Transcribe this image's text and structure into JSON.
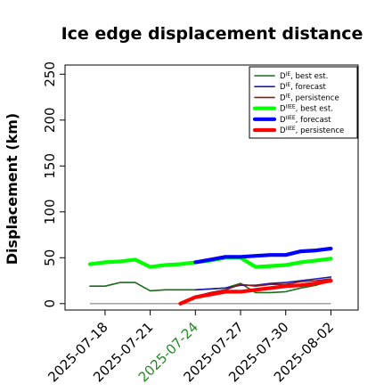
{
  "chart_data": {
    "type": "line",
    "title": "Ice edge displacement distance",
    "ylabel": "Displacement (km)",
    "xlabel": "",
    "ylim": [
      -7,
      260
    ],
    "yticks": [
      0,
      50,
      100,
      150,
      200,
      250
    ],
    "xticks": [
      "2025-07-18",
      "2025-07-21",
      "2025-07-24",
      "2025-07-27",
      "2025-07-30",
      "2025-08-02"
    ],
    "xtick_colors": [
      "#000000",
      "#000000",
      "#228B22",
      "#000000",
      "#000000",
      "#000000"
    ],
    "grid": false,
    "legend_position": "top-right",
    "reference_line": {
      "value": 0,
      "x": [
        "2025-07-17",
        "2025-08-02"
      ],
      "color": "#808080"
    },
    "series": [
      {
        "name": "D^IE, best est.",
        "color": "#1a6b1a",
        "width": 1.6,
        "x": [
          "2025-07-17",
          "2025-07-18",
          "2025-07-19",
          "2025-07-20",
          "2025-07-21",
          "2025-07-22",
          "2025-07-23",
          "2025-07-24",
          "2025-07-25",
          "2025-07-26",
          "2025-07-27",
          "2025-07-28",
          "2025-07-29",
          "2025-07-30",
          "2025-07-31",
          "2025-08-01",
          "2025-08-02"
        ],
        "values": [
          19,
          19,
          23,
          23,
          14,
          15,
          15,
          15,
          16,
          17,
          22,
          12,
          12,
          13,
          17,
          20,
          25
        ]
      },
      {
        "name": "D^IE, forecast",
        "color": "#1c1cb4",
        "width": 1.6,
        "x": [
          "2025-07-24",
          "2025-07-25",
          "2025-07-26",
          "2025-07-27",
          "2025-07-28",
          "2025-07-29",
          "2025-07-30",
          "2025-07-31",
          "2025-08-01",
          "2025-08-02"
        ],
        "values": [
          15,
          16,
          17,
          20,
          20,
          22,
          23,
          25,
          27,
          29
        ]
      },
      {
        "name": "D^IE, persistence",
        "color": "#8b1a1a",
        "width": 1.6,
        "x": [
          "2025-07-24",
          "2025-07-25",
          "2025-07-26",
          "2025-07-27",
          "2025-07-28",
          "2025-07-29",
          "2025-07-30",
          "2025-07-31",
          "2025-08-01",
          "2025-08-02"
        ],
        "values": [
          8,
          12,
          15,
          21,
          19,
          21,
          21,
          24,
          25,
          27
        ]
      },
      {
        "name": "D^IIEE, best est.",
        "color": "#00ff00",
        "width": 4.2,
        "x": [
          "2025-07-17",
          "2025-07-18",
          "2025-07-19",
          "2025-07-20",
          "2025-07-21",
          "2025-07-22",
          "2025-07-23",
          "2025-07-24",
          "2025-07-25",
          "2025-07-26",
          "2025-07-27",
          "2025-07-28",
          "2025-07-29",
          "2025-07-30",
          "2025-07-31",
          "2025-08-01",
          "2025-08-02"
        ],
        "values": [
          43,
          45,
          46,
          48,
          40,
          42,
          43,
          45,
          47,
          50,
          50,
          40,
          41,
          42,
          45,
          47,
          49
        ]
      },
      {
        "name": "D^IIEE, forecast",
        "color": "#0000ff",
        "width": 4.2,
        "x": [
          "2025-07-24",
          "2025-07-25",
          "2025-07-26",
          "2025-07-27",
          "2025-07-28",
          "2025-07-29",
          "2025-07-30",
          "2025-07-31",
          "2025-08-01",
          "2025-08-02"
        ],
        "values": [
          45,
          48,
          51,
          51,
          52,
          53,
          53,
          57,
          58,
          60
        ]
      },
      {
        "name": "D^IIEE, persistence",
        "color": "#ff0000",
        "width": 4.2,
        "x": [
          "2025-07-23",
          "2025-07-24",
          "2025-07-25",
          "2025-07-26",
          "2025-07-27",
          "2025-07-28",
          "2025-07-29",
          "2025-07-30",
          "2025-07-31",
          "2025-08-01",
          "2025-08-02"
        ],
        "values": [
          0,
          7,
          10,
          13,
          13,
          15,
          17,
          19,
          20,
          22,
          25
        ]
      }
    ],
    "legend_entries": [
      {
        "base": "D",
        "sup": "IE",
        "rest": ", best est.",
        "color": "#1a6b1a",
        "width": 1.6
      },
      {
        "base": "D",
        "sup": "IE",
        "rest": ", forecast",
        "color": "#1c1cb4",
        "width": 1.6
      },
      {
        "base": "D",
        "sup": "IE",
        "rest": ", persistence",
        "color": "#8b1a1a",
        "width": 1.6
      },
      {
        "base": "D",
        "sup": "IIEE",
        "rest": ", best est.",
        "color": "#00ff00",
        "width": 4.2
      },
      {
        "base": "D",
        "sup": "IIEE",
        "rest": ", forecast",
        "color": "#0000ff",
        "width": 4.2
      },
      {
        "base": "D",
        "sup": "IIEE",
        "rest": ", persistence",
        "color": "#ff0000",
        "width": 4.2
      }
    ]
  }
}
